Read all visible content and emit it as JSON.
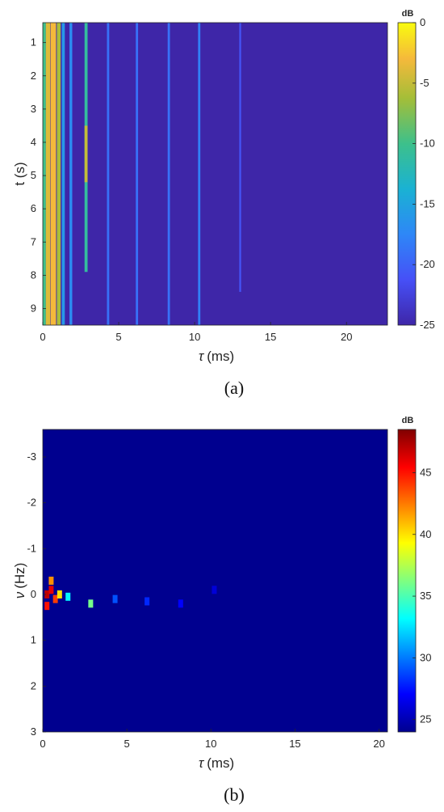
{
  "chart_data": [
    {
      "type": "heatmap",
      "caption": "(a)",
      "xlabel_symbol": "τ",
      "xlabel_unit": "(ms)",
      "ylabel": "t (s)",
      "xlim": [
        0,
        22.7
      ],
      "ylim": [
        0.4,
        9.5
      ],
      "y_direction": "reversed",
      "x_ticks": [
        0,
        5,
        10,
        15,
        20
      ],
      "y_ticks": [
        1,
        2,
        3,
        4,
        5,
        6,
        7,
        8,
        9
      ],
      "colorbar": {
        "unit": "dB",
        "range": [
          -25,
          0
        ],
        "ticks": [
          "0",
          "-5",
          "-10",
          "-15",
          "-20",
          "-25"
        ],
        "colormap": "parula"
      },
      "background_db": -25,
      "components": [
        {
          "tau": 0.1,
          "width": 0.2,
          "db": -10,
          "t_range": [
            0.4,
            9.5
          ]
        },
        {
          "tau": 0.35,
          "width": 0.3,
          "db": -4,
          "t_range": [
            0.4,
            9.5
          ]
        },
        {
          "tau": 0.7,
          "width": 0.35,
          "db": -3,
          "t_range": [
            0.4,
            9.5
          ]
        },
        {
          "tau": 1.05,
          "width": 0.25,
          "db": -6,
          "t_range": [
            0.4,
            9.5
          ]
        },
        {
          "tau": 1.35,
          "width": 0.2,
          "db": -16,
          "t_range": [
            0.4,
            9.5
          ]
        },
        {
          "tau": 1.85,
          "width": 0.18,
          "db": -17,
          "t_range": [
            0.4,
            9.5
          ]
        },
        {
          "tau": 2.85,
          "width": 0.2,
          "db": -11,
          "t_range": [
            0.4,
            7.9
          ]
        },
        {
          "tau": 4.3,
          "width": 0.15,
          "db": -19,
          "t_range": [
            0.4,
            9.5
          ]
        },
        {
          "tau": 6.2,
          "width": 0.15,
          "db": -19,
          "t_range": [
            0.4,
            9.5
          ]
        },
        {
          "tau": 8.3,
          "width": 0.15,
          "db": -19,
          "t_range": [
            0.4,
            9.5
          ]
        },
        {
          "tau": 10.3,
          "width": 0.15,
          "db": -18,
          "t_range": [
            0.4,
            9.5
          ]
        },
        {
          "tau": 13.0,
          "width": 0.12,
          "db": -21,
          "t_range": [
            0.4,
            8.5
          ]
        }
      ],
      "hotspots": [
        {
          "tau": 2.85,
          "t_range": [
            3.5,
            5.2
          ],
          "db": -5
        }
      ]
    },
    {
      "type": "heatmap",
      "caption": "(b)",
      "xlabel_symbol": "τ",
      "xlabel_unit": "(ms)",
      "ylabel_symbol": "ν",
      "ylabel_unit": "(Hz)",
      "xlim": [
        0,
        20.5
      ],
      "ylim": [
        -3.6,
        3.0
      ],
      "y_direction": "reversed",
      "x_ticks": [
        0,
        5,
        10,
        15,
        20
      ],
      "y_ticks": [
        "-3",
        "-2",
        "-1",
        "0",
        "1",
        "2",
        "3"
      ],
      "y_tick_values": [
        -3,
        -2,
        -1,
        0,
        1,
        2,
        3
      ],
      "colorbar": {
        "unit": "dB",
        "range": [
          24,
          48.5
        ],
        "ticks": [
          "45",
          "40",
          "35",
          "30",
          "25"
        ],
        "tick_values": [
          45,
          40,
          35,
          30,
          25
        ],
        "colormap": "jet"
      },
      "background_db": 24,
      "components": [
        {
          "tau": 0.25,
          "nu": 0.0,
          "db": 47
        },
        {
          "tau": 0.5,
          "nu": -0.1,
          "db": 46
        },
        {
          "tau": 0.75,
          "nu": 0.1,
          "db": 44
        },
        {
          "tau": 0.25,
          "nu": 0.25,
          "db": 45
        },
        {
          "tau": 0.5,
          "nu": -0.3,
          "db": 42
        },
        {
          "tau": 1.0,
          "nu": 0.0,
          "db": 40
        },
        {
          "tau": 1.5,
          "nu": 0.05,
          "db": 33
        },
        {
          "tau": 2.85,
          "nu": 0.2,
          "db": 36
        },
        {
          "tau": 4.3,
          "nu": 0.1,
          "db": 29
        },
        {
          "tau": 6.2,
          "nu": 0.15,
          "db": 28
        },
        {
          "tau": 8.2,
          "nu": 0.2,
          "db": 27
        },
        {
          "tau": 10.2,
          "nu": -0.1,
          "db": 26
        }
      ]
    }
  ]
}
